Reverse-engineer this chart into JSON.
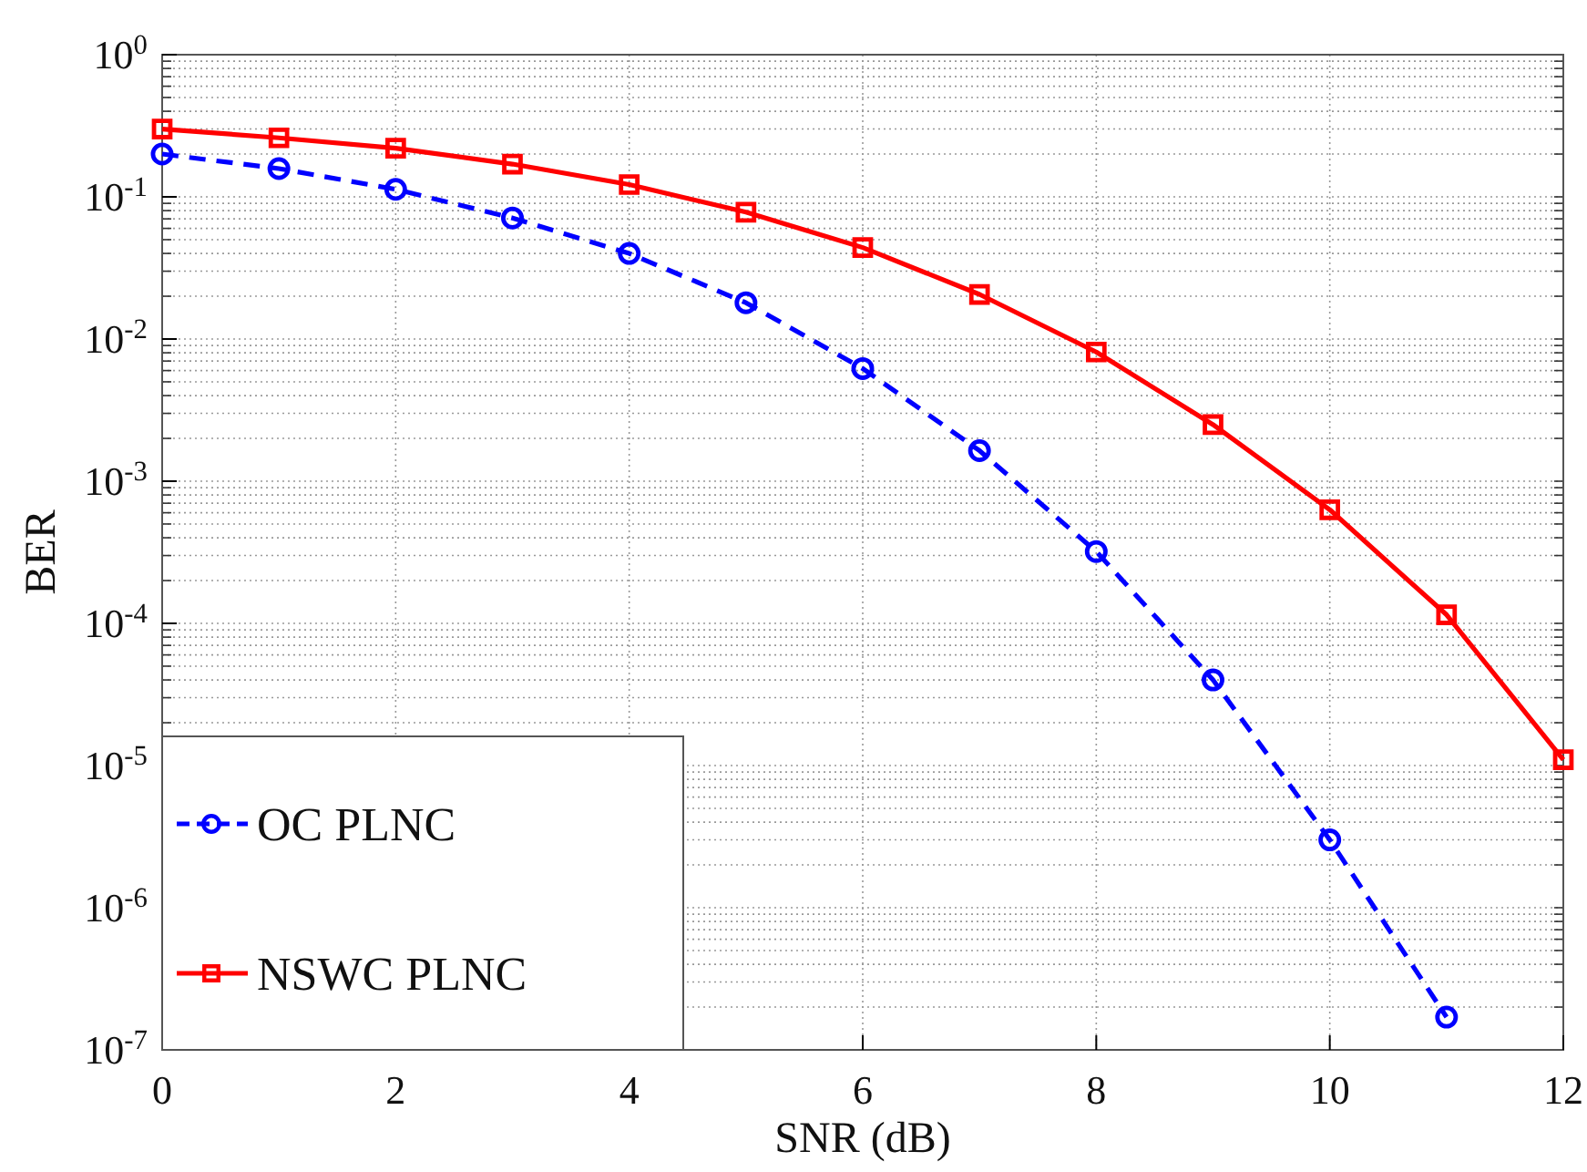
{
  "chart_data": {
    "type": "line",
    "xlabel": "SNR (dB)",
    "ylabel": "BER",
    "log": "y",
    "grid": true,
    "legend": "bottom left",
    "x": [
      0,
      1,
      2,
      3,
      4,
      5,
      6,
      7,
      8,
      9,
      10,
      11,
      12
    ],
    "xlim": [
      0,
      12
    ],
    "xticks": [
      0,
      2,
      4,
      6,
      8,
      10,
      12
    ],
    "ylim": [
      1e-07,
      1
    ],
    "yticks": [
      {
        "value": 1,
        "label": "10$^{0}$"
      },
      {
        "value": 0.1,
        "label": "10$^{-1}$"
      },
      {
        "value": 0.01,
        "label": "10$^{-2}$"
      },
      {
        "value": 0.001,
        "label": "10$^{-3}$"
      },
      {
        "value": 0.0001,
        "label": "10$^{-4}$"
      },
      {
        "value": 1e-05,
        "label": "10$^{-5}$"
      },
      {
        "value": 1e-06,
        "label": "10$^{-6}$"
      },
      {
        "value": 1e-07,
        "label": "10$^{-7}$"
      }
    ],
    "series": [
      {
        "name": "OC PLNC",
        "color": "#0000ff",
        "line_style": "dashed",
        "marker": "circle",
        "x": [
          0,
          1,
          2,
          3,
          4,
          5,
          6,
          7,
          8,
          9,
          10,
          11
        ],
        "values": [
          0.2,
          0.158,
          0.113,
          0.071,
          0.04,
          0.018,
          0.0062,
          0.00164,
          0.00032,
          4e-05,
          3e-06,
          1.7e-07
        ]
      },
      {
        "name": "NSWC PLNC",
        "color": "#ff0000",
        "line_style": "solid",
        "marker": "square",
        "values": [
          0.3,
          0.26,
          0.22,
          0.17,
          0.122,
          0.078,
          0.044,
          0.0206,
          0.0081,
          0.0025,
          0.00063,
          0.000115,
          1.1e-05
        ]
      }
    ]
  }
}
